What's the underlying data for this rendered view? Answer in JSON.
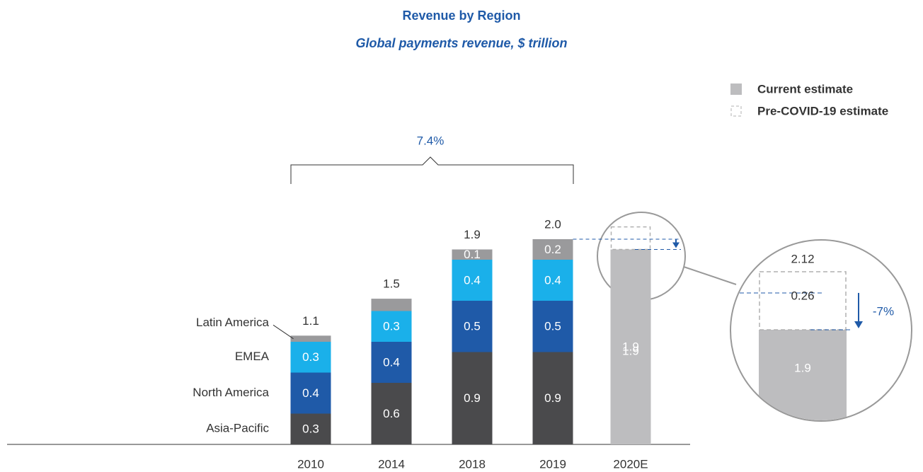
{
  "chart_data": {
    "type": "stacked_bar",
    "title": "Revenue by Region",
    "subtitle": "Global payments revenue, $ trillion",
    "categories": [
      "2010",
      "2014",
      "2018",
      "2019",
      "2020E"
    ],
    "series": [
      {
        "name": "Asia-Pacific",
        "color": "#4a4a4c",
        "values": [
          0.3,
          0.6,
          0.9,
          0.9,
          null
        ]
      },
      {
        "name": "North America",
        "color": "#1f5aa8",
        "values": [
          0.4,
          0.4,
          0.5,
          0.5,
          null
        ]
      },
      {
        "name": "EMEA",
        "color": "#1ab0ea",
        "values": [
          0.3,
          0.3,
          0.4,
          0.4,
          null
        ]
      },
      {
        "name": "Latin America",
        "color": "#9a9a9c",
        "values": [
          0.06,
          0.12,
          0.1,
          0.2,
          null
        ],
        "value_labels": [
          null,
          null,
          "0.1",
          "0.2",
          null
        ]
      },
      {
        "name": "Current estimate",
        "color": "#bdbdbf",
        "values": [
          null,
          null,
          null,
          null,
          1.9
        ]
      }
    ],
    "pre_covid_estimate": {
      "name": "Pre-COVID-19 estimate",
      "color": "#bdbdbf",
      "values": [
        null,
        null,
        null,
        null,
        2.12
      ]
    },
    "totals": [
      1.1,
      1.5,
      1.9,
      2.0,
      null
    ],
    "totals_value_labels": [
      null,
      null,
      null,
      "2.0",
      null
    ],
    "gap": 0.26,
    "cagr_label": "7.4%",
    "change_label": "-7%"
  }
}
